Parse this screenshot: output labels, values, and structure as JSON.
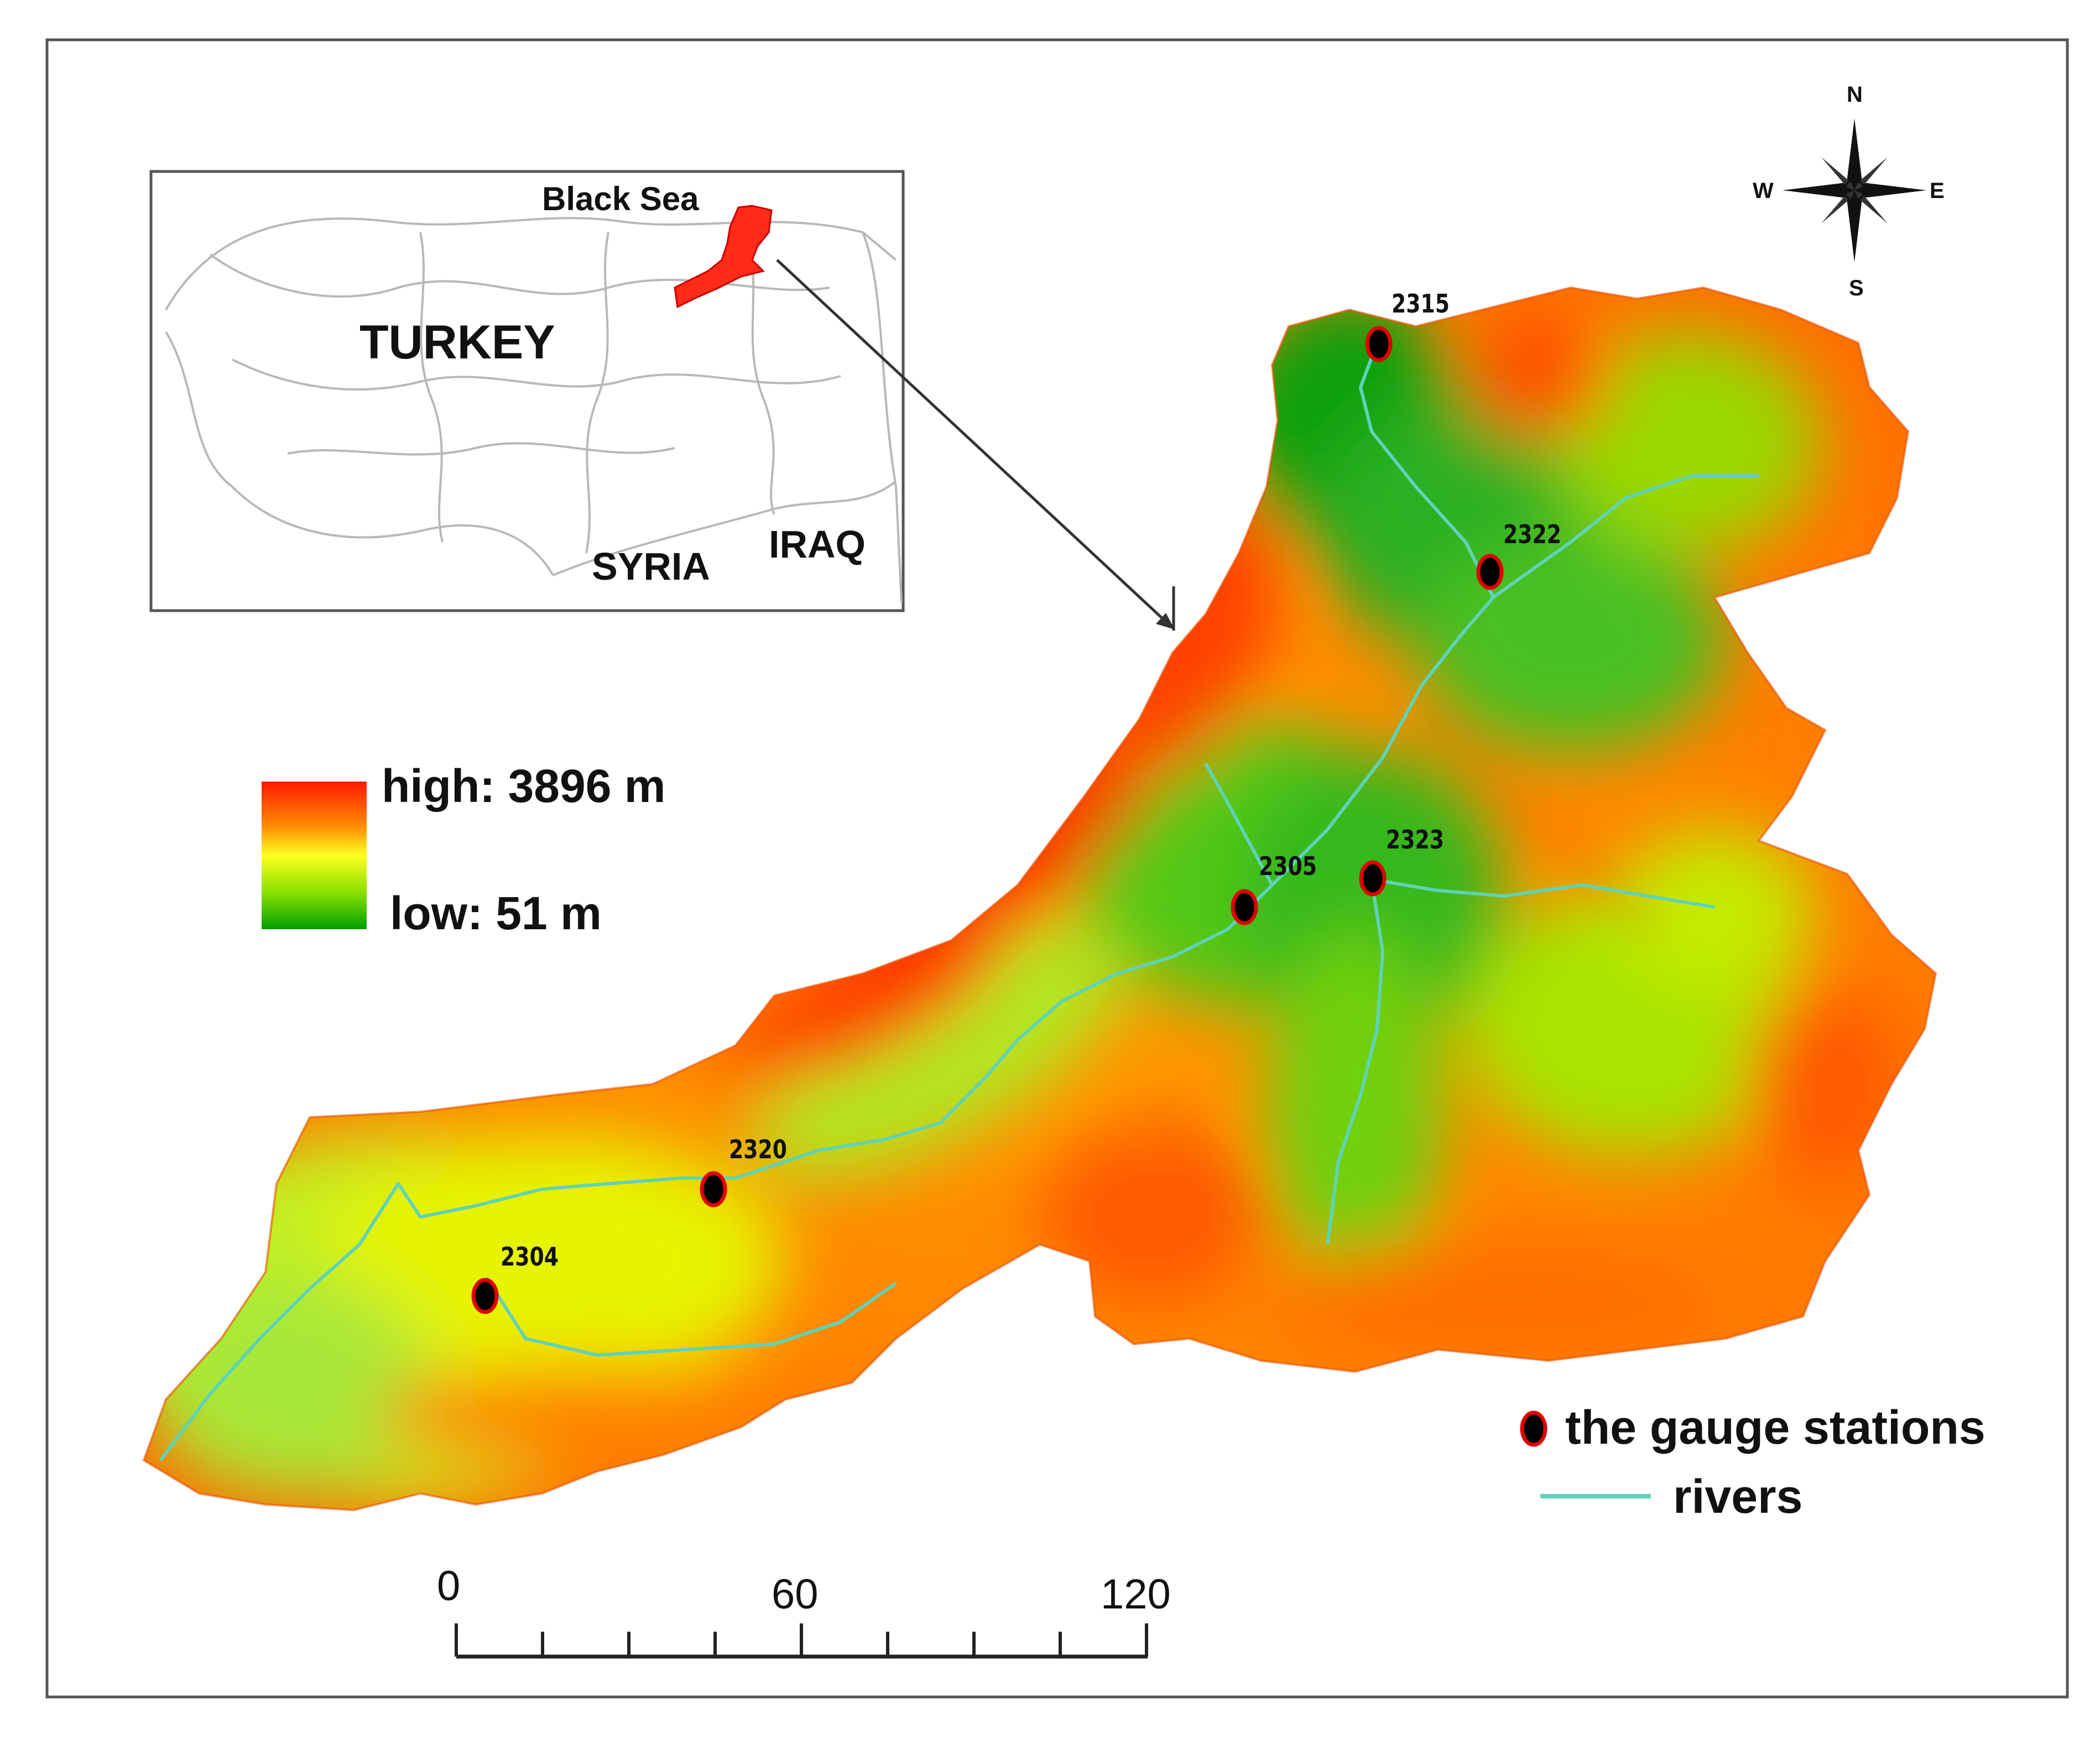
{
  "inset": {
    "country": "TURKEY",
    "sea": "Black Sea",
    "neighbors": [
      "SYRIA",
      "IRAQ"
    ]
  },
  "compass": {
    "north": "N",
    "south": "S",
    "east": "E",
    "west": "W"
  },
  "elevation_legend": {
    "high_label": "high: 3896 m",
    "low_label": "low: 51 m",
    "colors": [
      "#ff0000",
      "#ff8a00",
      "#ffff00",
      "#7ee000",
      "#00aa00"
    ]
  },
  "stations": [
    {
      "id": "2315"
    },
    {
      "id": "2322"
    },
    {
      "id": "2323"
    },
    {
      "id": "2305"
    },
    {
      "id": "2320"
    },
    {
      "id": "2304"
    }
  ],
  "legend": {
    "gauge_label": "the gauge stations",
    "rivers_label": "rivers",
    "gauge_color": "#e00000",
    "river_color": "#5fd3b8"
  },
  "scale_bar": {
    "ticks": [
      "0",
      "60",
      "120"
    ]
  }
}
